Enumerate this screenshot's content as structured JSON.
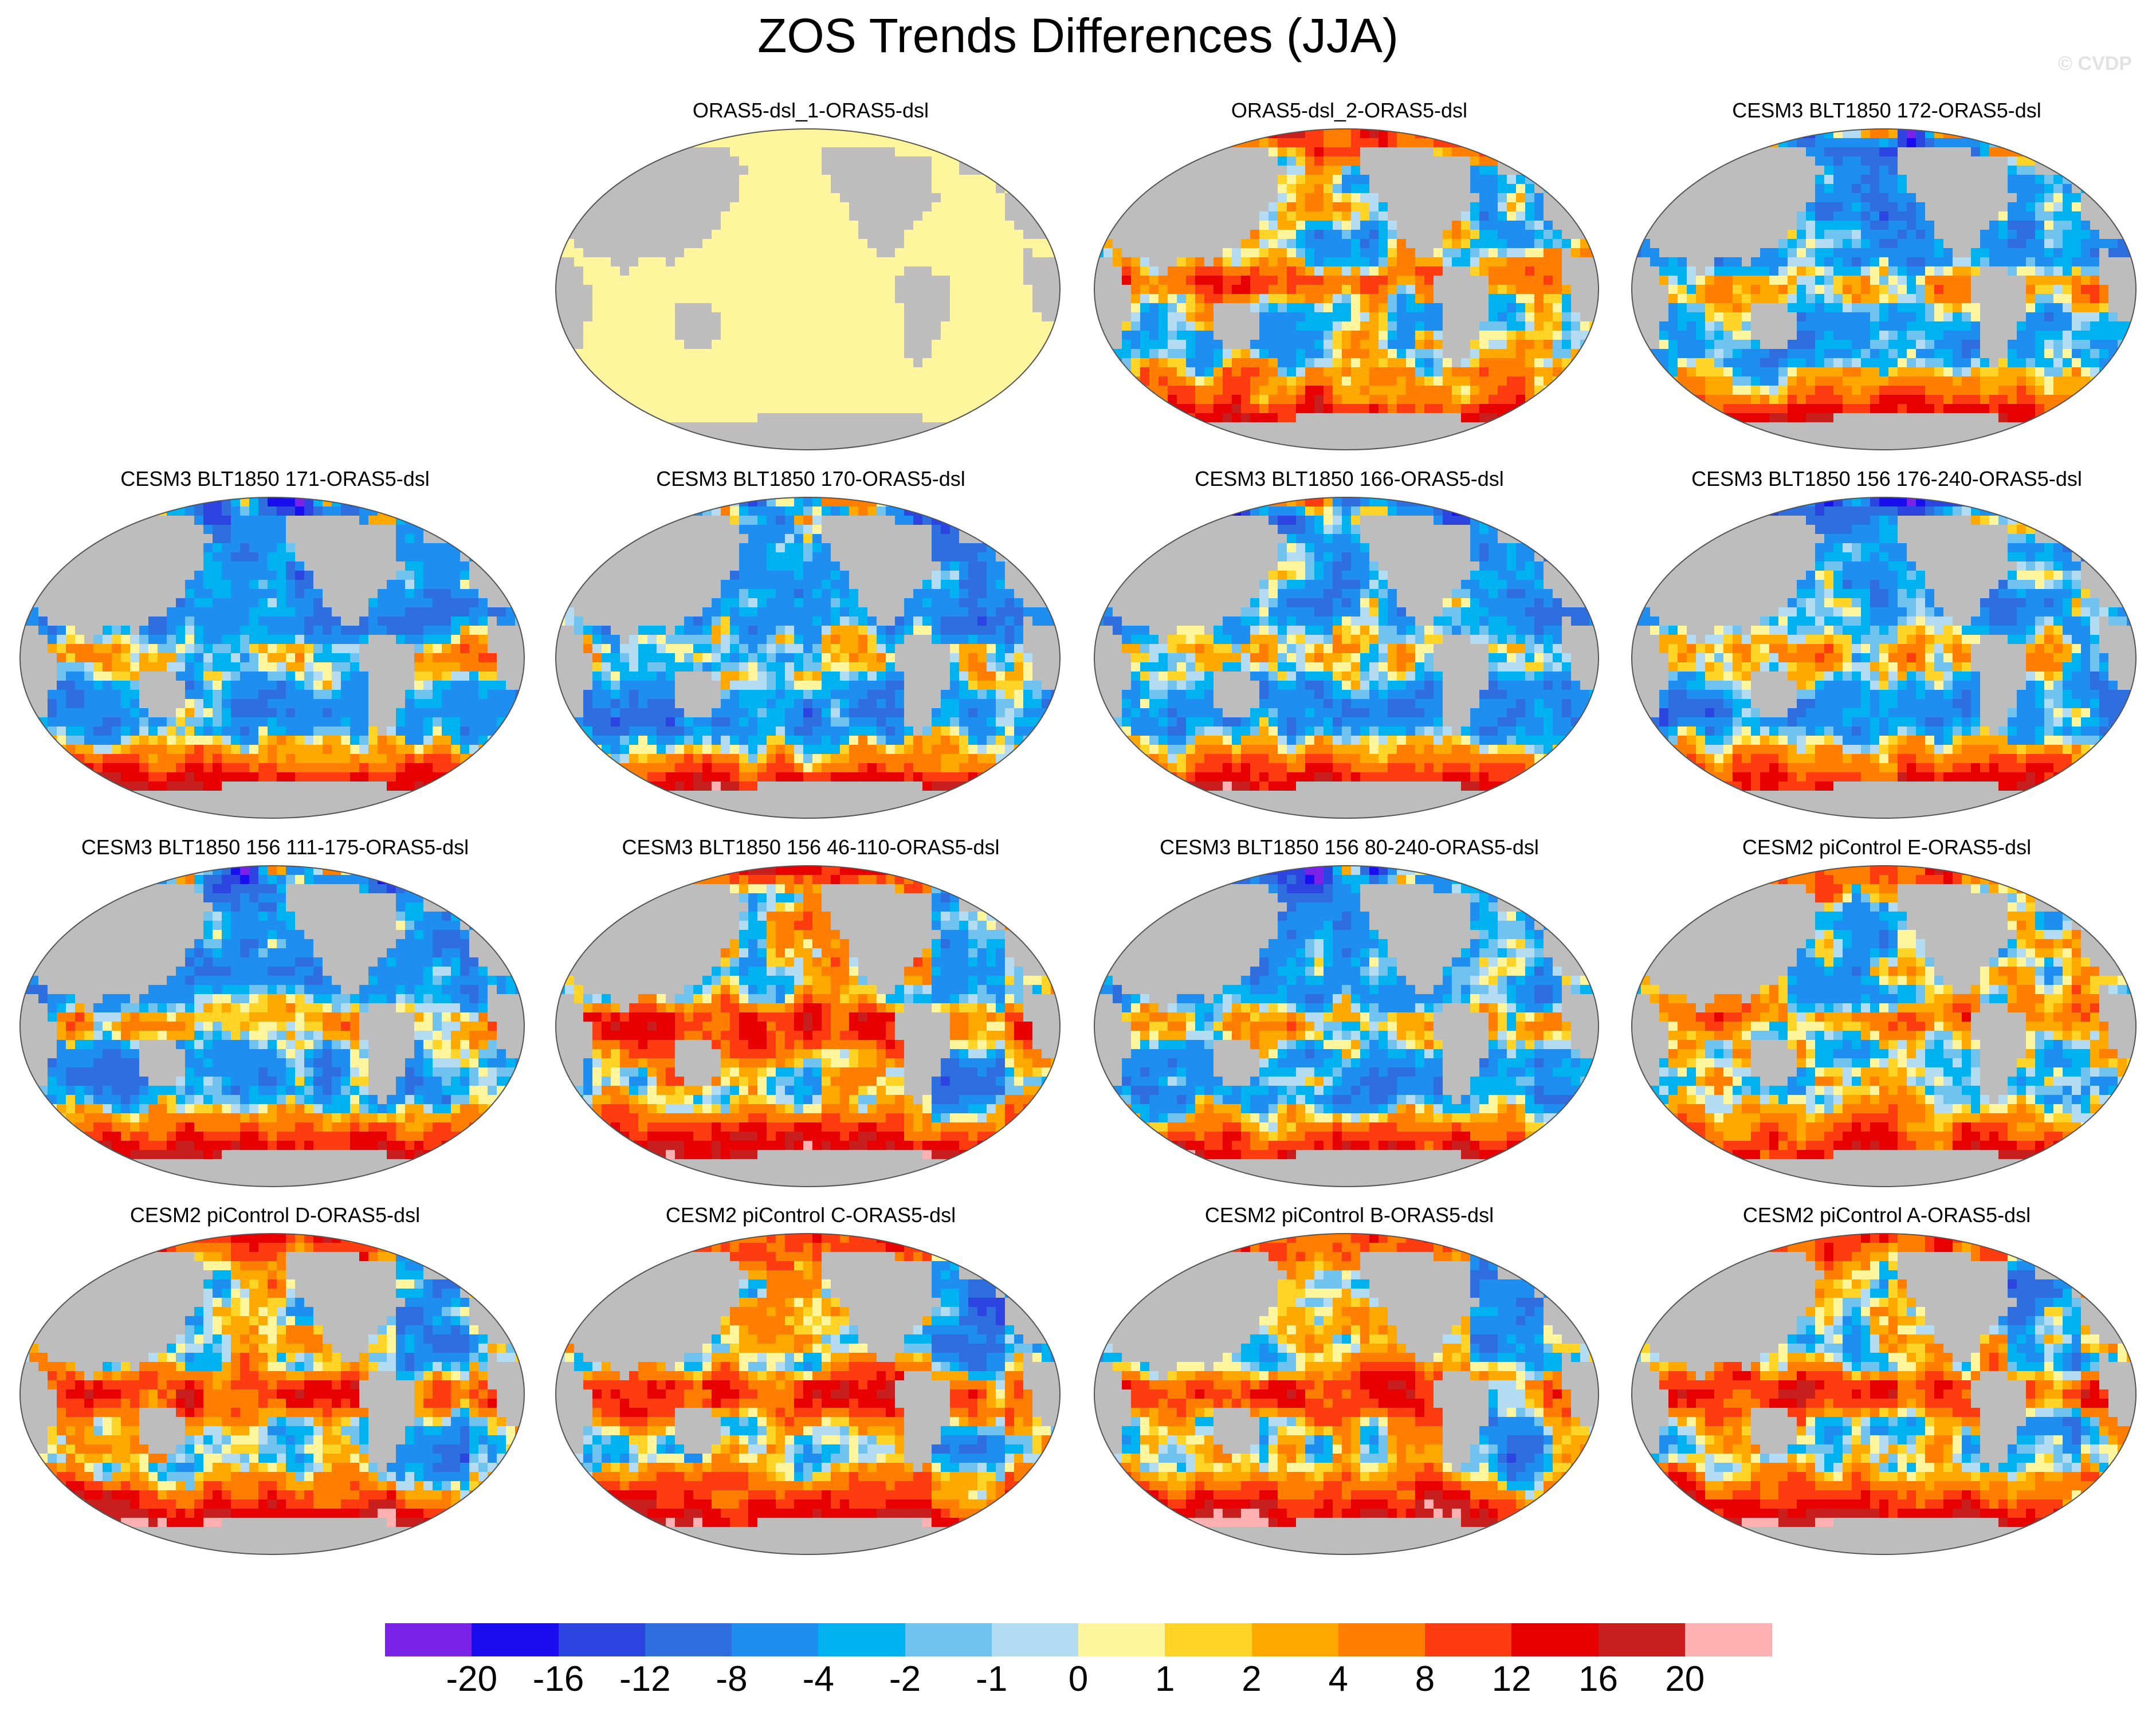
{
  "title": "ZOS Trends Differences (JJA)",
  "watermark": "© CVDP",
  "colors": {
    "land": "#bdbdbd",
    "ocean_neutral": "#fff59d",
    "missing": "#ffffff"
  },
  "panels": [
    {
      "label": "ORAS5-dsl_1-ORAS5-dsl",
      "pattern": "zero"
    },
    {
      "label": "ORAS5-dsl_2-ORAS5-dsl",
      "pattern": "mixed"
    },
    {
      "label": "CESM3 BLT1850 172-ORAS5-dsl",
      "pattern": "cool"
    },
    {
      "label": "CESM3 BLT1850 171-ORAS5-dsl",
      "pattern": "cool"
    },
    {
      "label": "CESM3 BLT1850 170-ORAS5-dsl",
      "pattern": "cool"
    },
    {
      "label": "CESM3 BLT1850 166-ORAS5-dsl",
      "pattern": "cool"
    },
    {
      "label": "CESM3 BLT1850 156 176-240-ORAS5-dsl",
      "pattern": "cool"
    },
    {
      "label": "CESM3 BLT1850 156 111-175-ORAS5-dsl",
      "pattern": "cool"
    },
    {
      "label": "CESM3 BLT1850 156 46-110-ORAS5-dsl",
      "pattern": "warm"
    },
    {
      "label": "CESM3 BLT1850 156 80-240-ORAS5-dsl",
      "pattern": "cool"
    },
    {
      "label": "CESM2 piControl E-ORAS5-dsl",
      "pattern": "mixed"
    },
    {
      "label": "CESM2 piControl D-ORAS5-dsl",
      "pattern": "warm"
    },
    {
      "label": "CESM2 piControl C-ORAS5-dsl",
      "pattern": "warm"
    },
    {
      "label": "CESM2 piControl B-ORAS5-dsl",
      "pattern": "warm"
    },
    {
      "label": "CESM2 piControl A-ORAS5-dsl",
      "pattern": "warm"
    }
  ],
  "colorbar": {
    "colors": [
      "#7b22e8",
      "#1a0df0",
      "#2d45e0",
      "#2f6ede",
      "#1e8ff0",
      "#00b2f0",
      "#6fc3ee",
      "#b3dcf2",
      "#fff59d",
      "#ffd426",
      "#ffa800",
      "#ff7d00",
      "#ff3c10",
      "#e80000",
      "#c81e1e",
      "#ffb0b0"
    ],
    "labels": [
      "-20",
      "-16",
      "-12",
      "-8",
      "-4",
      "-2",
      "-1",
      "0",
      "1",
      "2",
      "4",
      "8",
      "12",
      "16",
      "20"
    ]
  }
}
